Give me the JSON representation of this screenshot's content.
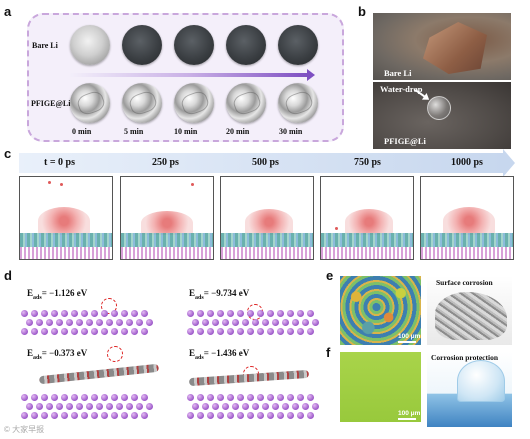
{
  "panel_labels": {
    "a": "a",
    "b": "b",
    "c": "c",
    "d": "d",
    "e": "e",
    "f": "f"
  },
  "panel_a": {
    "rows": [
      "Bare Li",
      "PFIGE@Li"
    ],
    "times": [
      "0 min",
      "5 min",
      "10 min",
      "20 min",
      "30 min"
    ]
  },
  "panel_b": {
    "top_label": "Bare Li",
    "bottom_label": "PFIGE@Li",
    "callout": "Water-drop"
  },
  "panel_c": {
    "times": [
      "t = 0 ps",
      "250 ps",
      "500 ps",
      "750 ps",
      "1000 ps"
    ]
  },
  "panel_d": {
    "energies": [
      {
        "sym": "E",
        "sub": "ads",
        "text": "= −1.126 eV"
      },
      {
        "sym": "E",
        "sub": "ads",
        "text": "= −9.734 eV"
      },
      {
        "sym": "E",
        "sub": "ads",
        "text": "= −0.373 eV"
      },
      {
        "sym": "E",
        "sub": "ads",
        "text": "= −1.436 eV"
      }
    ]
  },
  "panel_e": {
    "title": "Surface corrosion",
    "scalebar": "100 μm"
  },
  "panel_f": {
    "title": "Corrosion protection",
    "scalebar": "100 μm"
  },
  "watermark": "© 大家早报"
}
